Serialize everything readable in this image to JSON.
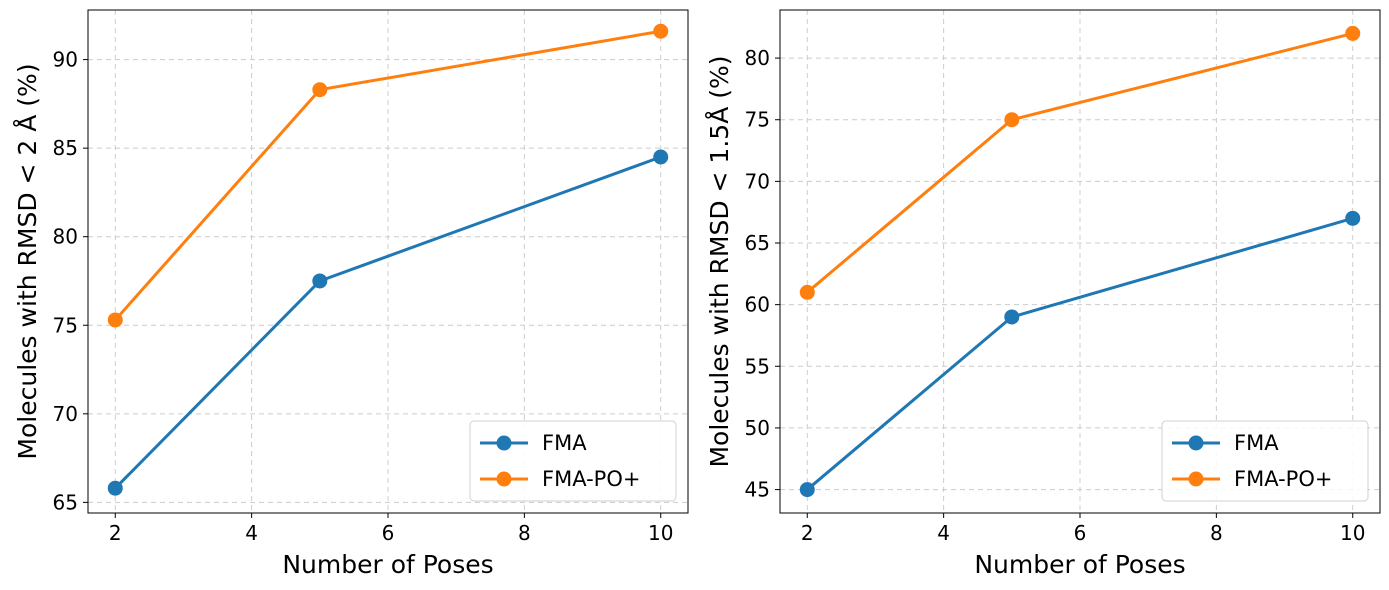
{
  "chart_data": [
    {
      "type": "line",
      "title": "",
      "xlabel": "Number of Poses",
      "ylabel": "Molecules with RMSD < 2 Å (%)",
      "x": [
        2,
        5,
        10
      ],
      "xlim": [
        1.6,
        10.4
      ],
      "ylim": [
        64.4,
        92.8
      ],
      "xticks": [
        2,
        4,
        6,
        8,
        10
      ],
      "yticks": [
        65,
        70,
        75,
        80,
        85,
        90
      ],
      "grid": true,
      "legend_position": "lower-right",
      "series": [
        {
          "name": "FMA",
          "color": "#1f77b4",
          "values": [
            65.8,
            77.5,
            84.5
          ]
        },
        {
          "name": "FMA-PO+",
          "color": "#ff7f0e",
          "values": [
            75.3,
            88.3,
            91.6
          ]
        }
      ]
    },
    {
      "type": "line",
      "title": "",
      "xlabel": "Number of Poses",
      "ylabel": "Molecules with RMSD < 1.5Å (%)",
      "x": [
        2,
        5,
        10
      ],
      "xlim": [
        1.6,
        10.4
      ],
      "ylim": [
        43.1,
        83.9
      ],
      "xticks": [
        2,
        4,
        6,
        8,
        10
      ],
      "yticks": [
        45,
        50,
        55,
        60,
        65,
        70,
        75,
        80
      ],
      "grid": true,
      "legend_position": "lower-right",
      "series": [
        {
          "name": "FMA",
          "color": "#1f77b4",
          "values": [
            45,
            59,
            67
          ]
        },
        {
          "name": "FMA-PO+",
          "color": "#ff7f0e",
          "values": [
            61,
            75,
            82
          ]
        }
      ]
    }
  ]
}
